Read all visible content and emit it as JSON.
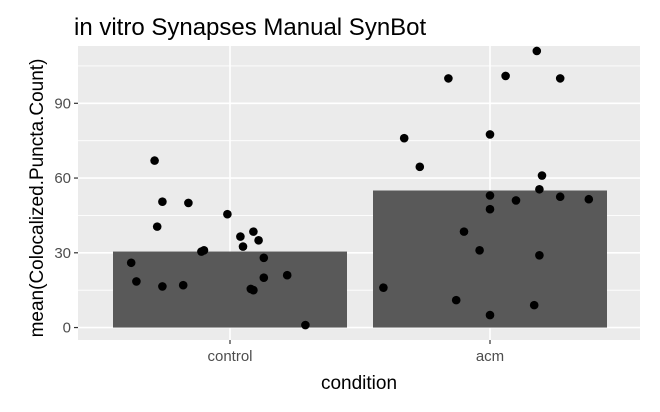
{
  "chart_data": {
    "type": "bar",
    "title": "in vitro Synapses Manual SynBot",
    "xlabel": "condition",
    "ylabel": "mean(Colocalized.Puncta.Count)",
    "categories": [
      "control",
      "acm"
    ],
    "values": [
      30.5,
      55
    ],
    "ylim": [
      -5,
      113
    ],
    "yticks": [
      0,
      30,
      60,
      90
    ],
    "grid": true,
    "background": "#EBEBEB",
    "bar_color": "#595959",
    "point_color": "#000000",
    "points": [
      {
        "category": "control",
        "jitter": -0.38,
        "y": 26
      },
      {
        "category": "control",
        "jitter": -0.36,
        "y": 18.5
      },
      {
        "category": "control",
        "jitter": -0.29,
        "y": 67
      },
      {
        "category": "control",
        "jitter": -0.28,
        "y": 40.5
      },
      {
        "category": "control",
        "jitter": -0.26,
        "y": 50.5
      },
      {
        "category": "control",
        "jitter": -0.26,
        "y": 16.5
      },
      {
        "category": "control",
        "jitter": -0.18,
        "y": 17
      },
      {
        "category": "control",
        "jitter": -0.16,
        "y": 50
      },
      {
        "category": "control",
        "jitter": -0.11,
        "y": 30.5
      },
      {
        "category": "control",
        "jitter": -0.1,
        "y": 31
      },
      {
        "category": "control",
        "jitter": -0.01,
        "y": 45.5
      },
      {
        "category": "control",
        "jitter": 0.04,
        "y": 36.5
      },
      {
        "category": "control",
        "jitter": 0.05,
        "y": 32.5
      },
      {
        "category": "control",
        "jitter": 0.08,
        "y": 15.5
      },
      {
        "category": "control",
        "jitter": 0.09,
        "y": 38.5
      },
      {
        "category": "control",
        "jitter": 0.09,
        "y": 15
      },
      {
        "category": "control",
        "jitter": 0.11,
        "y": 35
      },
      {
        "category": "control",
        "jitter": 0.13,
        "y": 28
      },
      {
        "category": "control",
        "jitter": 0.13,
        "y": 20
      },
      {
        "category": "control",
        "jitter": 0.22,
        "y": 21
      },
      {
        "category": "control",
        "jitter": 0.29,
        "y": 1
      },
      {
        "category": "acm",
        "jitter": -0.41,
        "y": 16
      },
      {
        "category": "acm",
        "jitter": -0.33,
        "y": 76
      },
      {
        "category": "acm",
        "jitter": -0.27,
        "y": 64.5
      },
      {
        "category": "acm",
        "jitter": -0.16,
        "y": 100
      },
      {
        "category": "acm",
        "jitter": -0.13,
        "y": 11
      },
      {
        "category": "acm",
        "jitter": -0.1,
        "y": 38.5
      },
      {
        "category": "acm",
        "jitter": -0.04,
        "y": 31
      },
      {
        "category": "acm",
        "jitter": 0.0,
        "y": 53
      },
      {
        "category": "acm",
        "jitter": 0.0,
        "y": 47.5
      },
      {
        "category": "acm",
        "jitter": 0.0,
        "y": 77.5
      },
      {
        "category": "acm",
        "jitter": 0.0,
        "y": 5
      },
      {
        "category": "acm",
        "jitter": 0.06,
        "y": 101
      },
      {
        "category": "acm",
        "jitter": 0.1,
        "y": 51
      },
      {
        "category": "acm",
        "jitter": 0.17,
        "y": 9
      },
      {
        "category": "acm",
        "jitter": 0.18,
        "y": 111
      },
      {
        "category": "acm",
        "jitter": 0.19,
        "y": 55.5
      },
      {
        "category": "acm",
        "jitter": 0.19,
        "y": 29
      },
      {
        "category": "acm",
        "jitter": 0.2,
        "y": 61
      },
      {
        "category": "acm",
        "jitter": 0.27,
        "y": 52.5
      },
      {
        "category": "acm",
        "jitter": 0.27,
        "y": 100
      },
      {
        "category": "acm",
        "jitter": 0.38,
        "y": 51.5
      }
    ]
  }
}
